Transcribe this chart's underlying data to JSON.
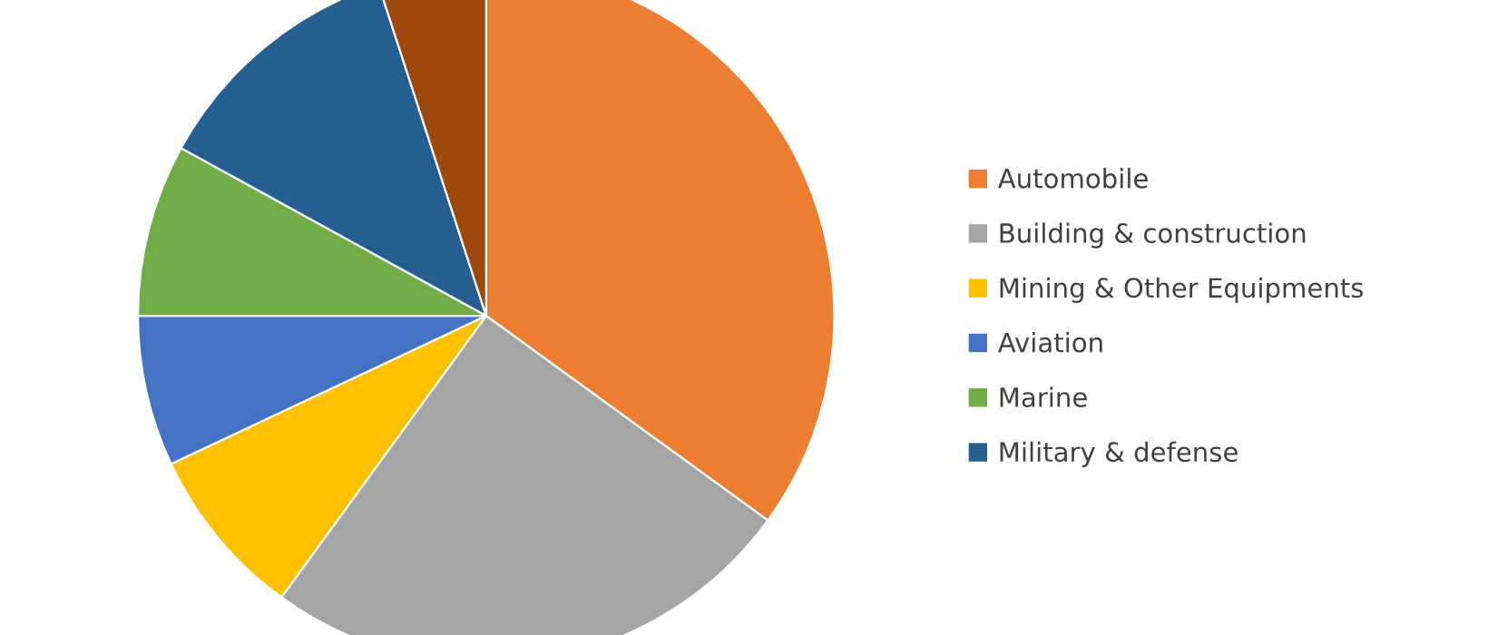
{
  "chart_data": {
    "type": "pie",
    "categories": [
      "Automobile",
      "Building & construction",
      "Mining & Other Equipments",
      "Aviation",
      "Marine",
      "Military & defense",
      null
    ],
    "values": [
      35,
      25,
      8,
      7,
      8,
      12,
      5
    ],
    "colors": [
      "#ed7d31",
      "#a5a5a5",
      "#ffc000",
      "#4472c4",
      "#70ad47",
      "#255e91",
      "#9e480e"
    ],
    "legend": "right"
  }
}
